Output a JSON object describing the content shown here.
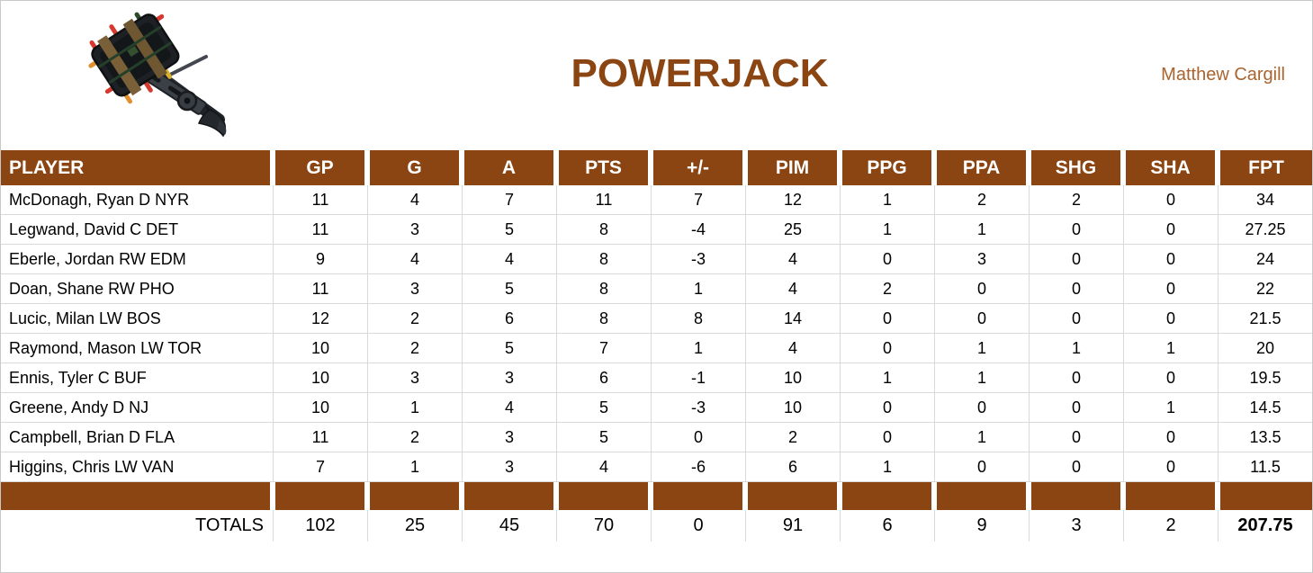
{
  "header": {
    "title": "POWERJACK",
    "owner": "Matthew Cargill"
  },
  "colors": {
    "brown": "#8B4513",
    "title_text": "#8B4513",
    "owner_text": "#A9642F",
    "grid_line": "#D9D9D9",
    "header_text": "#FFFFFF"
  },
  "icons": {
    "logo": "powerjack-weapon-image"
  },
  "table": {
    "columns": [
      "PLAYER",
      "GP",
      "G",
      "A",
      "PTS",
      "+/-",
      "PIM",
      "PPG",
      "PPA",
      "SHG",
      "SHA",
      "FPT"
    ],
    "rows": [
      [
        "McDonagh, Ryan D NYR",
        "11",
        "4",
        "7",
        "11",
        "7",
        "12",
        "1",
        "2",
        "2",
        "0",
        "34"
      ],
      [
        "Legwand, David C DET",
        "11",
        "3",
        "5",
        "8",
        "-4",
        "25",
        "1",
        "1",
        "0",
        "0",
        "27.25"
      ],
      [
        "Eberle, Jordan RW EDM",
        "9",
        "4",
        "4",
        "8",
        "-3",
        "4",
        "0",
        "3",
        "0",
        "0",
        "24"
      ],
      [
        "Doan, Shane RW PHO",
        "11",
        "3",
        "5",
        "8",
        "1",
        "4",
        "2",
        "0",
        "0",
        "0",
        "22"
      ],
      [
        "Lucic, Milan LW BOS",
        "12",
        "2",
        "6",
        "8",
        "8",
        "14",
        "0",
        "0",
        "0",
        "0",
        "21.5"
      ],
      [
        "Raymond, Mason LW TOR",
        "10",
        "2",
        "5",
        "7",
        "1",
        "4",
        "0",
        "1",
        "1",
        "1",
        "20"
      ],
      [
        "Ennis, Tyler C BUF",
        "10",
        "3",
        "3",
        "6",
        "-1",
        "10",
        "1",
        "1",
        "0",
        "0",
        "19.5"
      ],
      [
        "Greene, Andy D NJ",
        "10",
        "1",
        "4",
        "5",
        "-3",
        "10",
        "0",
        "0",
        "0",
        "1",
        "14.5"
      ],
      [
        "Campbell, Brian D FLA",
        "11",
        "2",
        "3",
        "5",
        "0",
        "2",
        "0",
        "1",
        "0",
        "0",
        "13.5"
      ],
      [
        "Higgins, Chris LW VAN",
        "7",
        "1",
        "3",
        "4",
        "-6",
        "6",
        "1",
        "0",
        "0",
        "0",
        "11.5"
      ]
    ],
    "totals": [
      "TOTALS",
      "102",
      "25",
      "45",
      "70",
      "0",
      "91",
      "6",
      "9",
      "3",
      "2",
      "207.75"
    ]
  }
}
